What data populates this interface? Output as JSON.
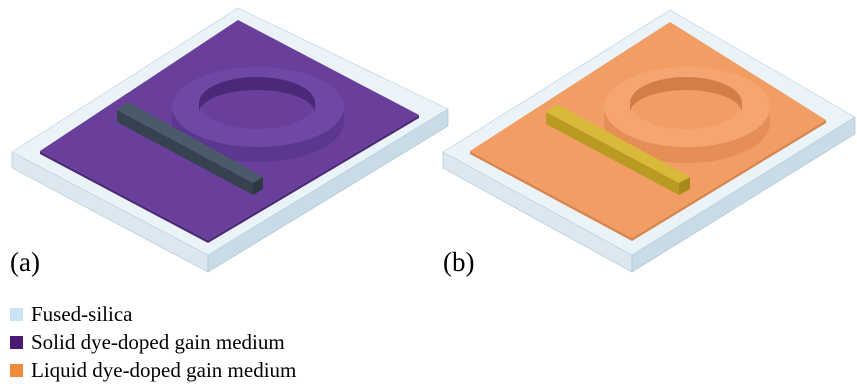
{
  "panels": [
    {
      "label": "(a)",
      "medium": "Solid dye-doped gain medium",
      "colors": {
        "substrate_top": "#eaf3f8",
        "substrate_side": "#c8dbe7",
        "substrate_front": "#dbe8f1",
        "medium_top": "#6a3f9c",
        "medium_edge": "#4f2a7a",
        "ring_top": "#6f48a6",
        "ring_outer": "#5b3790",
        "ring_inner": "#4a2a78",
        "waveguide_top": "#4b5a6a",
        "waveguide_side": "#36424f",
        "waveguide_end": "#2e3843"
      }
    },
    {
      "label": "(b)",
      "medium": "Liquid dye-doped gain medium",
      "colors": {
        "substrate_top": "#eaf3f8",
        "substrate_side": "#c8dbe7",
        "substrate_front": "#dbe8f1",
        "medium_top": "#f29d63",
        "medium_edge": "#d9854f",
        "ring_top": "#f5a56f",
        "ring_outer": "#e58e55",
        "ring_inner": "#d27e47",
        "waveguide_top": "#d8b93a",
        "waveguide_side": "#b99a22",
        "waveguide_end": "#a68a1c"
      }
    }
  ],
  "legend": [
    {
      "label": "Fused-silica",
      "color": "#c9e3f5"
    },
    {
      "label": "Solid dye-doped gain medium",
      "color": "#4b1a72"
    },
    {
      "label": "Liquid dye-doped gain medium",
      "color": "#f08a3c"
    }
  ]
}
